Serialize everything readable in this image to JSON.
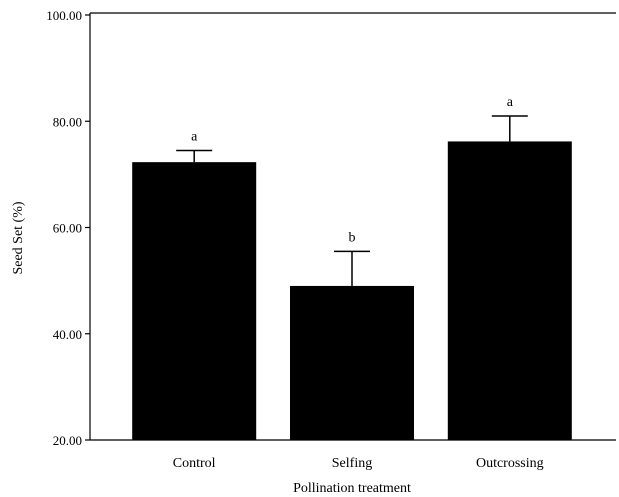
{
  "chart_data": {
    "type": "bar",
    "xlabel": "Pollination treatment",
    "ylabel": "Seed Set (%)",
    "ylim": [
      20,
      100
    ],
    "yticks": [
      "20.00",
      "40.00",
      "60.00",
      "80.00",
      "100.00"
    ],
    "grid": false,
    "categories": [
      "Control",
      "Selfing",
      "Outcrossing"
    ],
    "values": [
      72.3,
      49.0,
      76.2
    ],
    "error_upper": [
      74.5,
      55.5,
      81.0
    ],
    "significance": [
      "a",
      "b",
      "a"
    ],
    "bar_color": "#000000"
  }
}
